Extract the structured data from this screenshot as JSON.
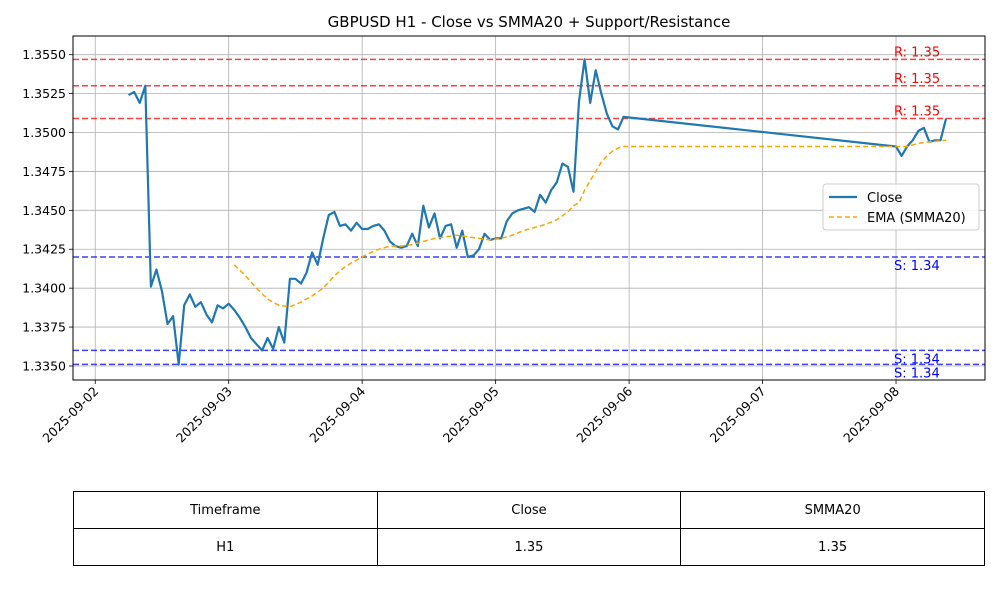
{
  "chart_data": {
    "type": "line",
    "title": "GBPUSD H1 - Close vs SMMA20 + Support/Resistance",
    "xlabel": "",
    "ylabel": "",
    "x_ticks": [
      "2025-09-02",
      "2025-09-03",
      "2025-09-04",
      "2025-09-05",
      "2025-09-06",
      "2025-09-07",
      "2025-09-08"
    ],
    "y_ticks": [
      "1.3350",
      "1.3375",
      "1.3400",
      "1.3425",
      "1.3450",
      "1.3475",
      "1.3500",
      "1.3525",
      "1.3550"
    ],
    "x_range": [
      "2025-09-01T20:00",
      "2025-09-08T16:00"
    ],
    "ylim": [
      1.3341,
      1.3562
    ],
    "grid": true,
    "legend_position": "center-right",
    "series": [
      {
        "name": "Close",
        "color": "#1f77b4",
        "style": "solid",
        "points": [
          [
            "2025-09-02T06:00",
            1.3524
          ],
          [
            "2025-09-02T07:00",
            1.3526
          ],
          [
            "2025-09-02T08:00",
            1.3519
          ],
          [
            "2025-09-02T09:00",
            1.353
          ],
          [
            "2025-09-02T10:00",
            1.3401
          ],
          [
            "2025-09-02T11:00",
            1.3412
          ],
          [
            "2025-09-02T12:00",
            1.3398
          ],
          [
            "2025-09-02T13:00",
            1.3377
          ],
          [
            "2025-09-02T14:00",
            1.3382
          ],
          [
            "2025-09-02T15:00",
            1.3351
          ],
          [
            "2025-09-02T16:00",
            1.3389
          ],
          [
            "2025-09-02T17:00",
            1.3396
          ],
          [
            "2025-09-02T18:00",
            1.3388
          ],
          [
            "2025-09-02T19:00",
            1.3391
          ],
          [
            "2025-09-02T20:00",
            1.3383
          ],
          [
            "2025-09-02T21:00",
            1.3378
          ],
          [
            "2025-09-02T22:00",
            1.3389
          ],
          [
            "2025-09-02T23:00",
            1.3387
          ],
          [
            "2025-09-03T00:00",
            1.339
          ],
          [
            "2025-09-03T01:00",
            1.3386
          ],
          [
            "2025-09-03T02:00",
            1.3381
          ],
          [
            "2025-09-03T03:00",
            1.3375
          ],
          [
            "2025-09-03T04:00",
            1.3368
          ],
          [
            "2025-09-03T05:00",
            1.3364
          ],
          [
            "2025-09-03T06:00",
            1.336
          ],
          [
            "2025-09-03T07:00",
            1.3368
          ],
          [
            "2025-09-03T08:00",
            1.3361
          ],
          [
            "2025-09-03T09:00",
            1.3375
          ],
          [
            "2025-09-03T10:00",
            1.3365
          ],
          [
            "2025-09-03T11:00",
            1.3406
          ],
          [
            "2025-09-03T12:00",
            1.3406
          ],
          [
            "2025-09-03T13:00",
            1.3403
          ],
          [
            "2025-09-03T14:00",
            1.341
          ],
          [
            "2025-09-03T15:00",
            1.3423
          ],
          [
            "2025-09-03T16:00",
            1.3415
          ],
          [
            "2025-09-03T17:00",
            1.3432
          ],
          [
            "2025-09-03T18:00",
            1.3447
          ],
          [
            "2025-09-03T19:00",
            1.3449
          ],
          [
            "2025-09-03T20:00",
            1.344
          ],
          [
            "2025-09-03T21:00",
            1.3441
          ],
          [
            "2025-09-03T22:00",
            1.3437
          ],
          [
            "2025-09-03T23:00",
            1.3442
          ],
          [
            "2025-09-04T00:00",
            1.3438
          ],
          [
            "2025-09-04T01:00",
            1.3438
          ],
          [
            "2025-09-04T02:00",
            1.344
          ],
          [
            "2025-09-04T03:00",
            1.3441
          ],
          [
            "2025-09-04T04:00",
            1.3437
          ],
          [
            "2025-09-04T05:00",
            1.343
          ],
          [
            "2025-09-04T06:00",
            1.3427
          ],
          [
            "2025-09-04T07:00",
            1.3426
          ],
          [
            "2025-09-04T08:00",
            1.3427
          ],
          [
            "2025-09-04T09:00",
            1.3435
          ],
          [
            "2025-09-04T10:00",
            1.3427
          ],
          [
            "2025-09-04T11:00",
            1.3453
          ],
          [
            "2025-09-04T12:00",
            1.3439
          ],
          [
            "2025-09-04T13:00",
            1.3448
          ],
          [
            "2025-09-04T14:00",
            1.3432
          ],
          [
            "2025-09-04T15:00",
            1.344
          ],
          [
            "2025-09-04T16:00",
            1.3441
          ],
          [
            "2025-09-04T17:00",
            1.3426
          ],
          [
            "2025-09-04T18:00",
            1.3437
          ],
          [
            "2025-09-04T19:00",
            1.342
          ],
          [
            "2025-09-04T20:00",
            1.3421
          ],
          [
            "2025-09-04T21:00",
            1.3425
          ],
          [
            "2025-09-04T22:00",
            1.3435
          ],
          [
            "2025-09-04T23:00",
            1.3431
          ],
          [
            "2025-09-05T00:00",
            1.3432
          ],
          [
            "2025-09-05T01:00",
            1.3432
          ],
          [
            "2025-09-05T02:00",
            1.3443
          ],
          [
            "2025-09-05T03:00",
            1.3448
          ],
          [
            "2025-09-05T04:00",
            1.345
          ],
          [
            "2025-09-05T05:00",
            1.3451
          ],
          [
            "2025-09-05T06:00",
            1.3452
          ],
          [
            "2025-09-05T07:00",
            1.3449
          ],
          [
            "2025-09-05T08:00",
            1.346
          ],
          [
            "2025-09-05T09:00",
            1.3455
          ],
          [
            "2025-09-05T10:00",
            1.3463
          ],
          [
            "2025-09-05T11:00",
            1.3468
          ],
          [
            "2025-09-05T12:00",
            1.348
          ],
          [
            "2025-09-05T13:00",
            1.3478
          ],
          [
            "2025-09-05T14:00",
            1.3462
          ],
          [
            "2025-09-05T15:00",
            1.352
          ],
          [
            "2025-09-05T16:00",
            1.3547
          ],
          [
            "2025-09-05T17:00",
            1.3519
          ],
          [
            "2025-09-05T18:00",
            1.354
          ],
          [
            "2025-09-05T19:00",
            1.3525
          ],
          [
            "2025-09-05T20:00",
            1.3512
          ],
          [
            "2025-09-05T21:00",
            1.3504
          ],
          [
            "2025-09-05T22:00",
            1.3502
          ],
          [
            "2025-09-05T23:00",
            1.351
          ],
          [
            "2025-09-08T00:00",
            1.3491
          ],
          [
            "2025-09-08T01:00",
            1.3485
          ],
          [
            "2025-09-08T02:00",
            1.3491
          ],
          [
            "2025-09-08T03:00",
            1.3495
          ],
          [
            "2025-09-08T04:00",
            1.3501
          ],
          [
            "2025-09-08T05:00",
            1.3503
          ],
          [
            "2025-09-08T06:00",
            1.3494
          ],
          [
            "2025-09-08T07:00",
            1.3495
          ],
          [
            "2025-09-08T08:00",
            1.3495
          ],
          [
            "2025-09-08T09:00",
            1.3509
          ]
        ]
      },
      {
        "name": "EMA (SMMA20)",
        "color": "#ffa500",
        "style": "dashed",
        "points": [
          [
            "2025-09-03T01:00",
            1.3415
          ],
          [
            "2025-09-03T03:00",
            1.3408
          ],
          [
            "2025-09-03T05:00",
            1.34
          ],
          [
            "2025-09-03T07:00",
            1.3393
          ],
          [
            "2025-09-03T09:00",
            1.3389
          ],
          [
            "2025-09-03T11:00",
            1.3388
          ],
          [
            "2025-09-03T13:00",
            1.3391
          ],
          [
            "2025-09-03T15:00",
            1.3395
          ],
          [
            "2025-09-03T17:00",
            1.34
          ],
          [
            "2025-09-03T19:00",
            1.3408
          ],
          [
            "2025-09-03T21:00",
            1.3414
          ],
          [
            "2025-09-03T23:00",
            1.3418
          ],
          [
            "2025-09-04T01:00",
            1.3422
          ],
          [
            "2025-09-04T03:00",
            1.3425
          ],
          [
            "2025-09-04T05:00",
            1.3427
          ],
          [
            "2025-09-04T07:00",
            1.3427
          ],
          [
            "2025-09-04T09:00",
            1.3428
          ],
          [
            "2025-09-04T11:00",
            1.343
          ],
          [
            "2025-09-04T13:00",
            1.3432
          ],
          [
            "2025-09-04T15:00",
            1.3433
          ],
          [
            "2025-09-04T17:00",
            1.3434
          ],
          [
            "2025-09-04T19:00",
            1.3433
          ],
          [
            "2025-09-04T21:00",
            1.3432
          ],
          [
            "2025-09-04T23:00",
            1.3431
          ],
          [
            "2025-09-05T01:00",
            1.3432
          ],
          [
            "2025-09-05T03:00",
            1.3434
          ],
          [
            "2025-09-05T05:00",
            1.3437
          ],
          [
            "2025-09-05T07:00",
            1.3439
          ],
          [
            "2025-09-05T09:00",
            1.3441
          ],
          [
            "2025-09-05T11:00",
            1.3444
          ],
          [
            "2025-09-05T13:00",
            1.3449
          ],
          [
            "2025-09-05T14:00",
            1.3453
          ],
          [
            "2025-09-05T15:00",
            1.3455
          ],
          [
            "2025-09-05T16:00",
            1.3463
          ],
          [
            "2025-09-05T17:00",
            1.3469
          ],
          [
            "2025-09-05T18:00",
            1.3475
          ],
          [
            "2025-09-05T19:00",
            1.3481
          ],
          [
            "2025-09-05T20:00",
            1.3485
          ],
          [
            "2025-09-05T21:00",
            1.3488
          ],
          [
            "2025-09-05T22:00",
            1.349
          ],
          [
            "2025-09-05T23:00",
            1.3491
          ],
          [
            "2025-09-08T00:00",
            1.3491
          ],
          [
            "2025-09-08T02:00",
            1.3491
          ],
          [
            "2025-09-08T04:00",
            1.3493
          ],
          [
            "2025-09-08T06:00",
            1.3494
          ],
          [
            "2025-09-08T09:00",
            1.3495
          ]
        ]
      }
    ],
    "levels": [
      {
        "kind": "resistance",
        "value": 1.3547,
        "label": "R: 1.35",
        "color": "#ff0000"
      },
      {
        "kind": "resistance",
        "value": 1.353,
        "label": "R: 1.35",
        "color": "#ff0000"
      },
      {
        "kind": "resistance",
        "value": 1.3509,
        "label": "R: 1.35",
        "color": "#ff0000"
      },
      {
        "kind": "support",
        "value": 1.342,
        "label": "S: 1.34",
        "color": "#0000ff"
      },
      {
        "kind": "support",
        "value": 1.336,
        "label": "S: 1.34",
        "color": "#0000ff"
      },
      {
        "kind": "support",
        "value": 1.3351,
        "label": "S: 1.34",
        "color": "#0000ff"
      }
    ]
  },
  "table": {
    "headers": [
      "Timeframe",
      "Close",
      "SMMA20"
    ],
    "rows": [
      [
        "H1",
        "1.35",
        "1.35"
      ]
    ]
  }
}
